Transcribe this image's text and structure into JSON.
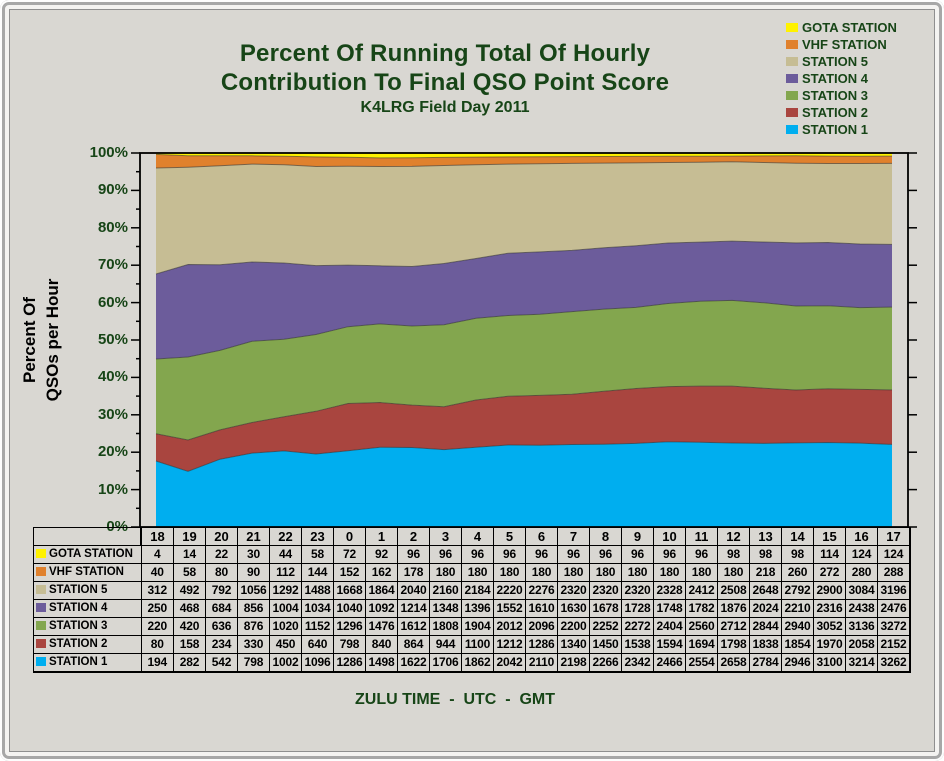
{
  "header": {
    "title_line1": "Percent Of Running Total Of Hourly",
    "title_line2": "Contribution To Final QSO Point Score",
    "subtitle": "K4LRG Field Day 2011"
  },
  "y_axis": {
    "title_line1": "Percent Of",
    "title_line2": "QSOs per Hour",
    "tick_labels": [
      "100%",
      "90%",
      "80%",
      "70%",
      "60%",
      "50%",
      "40%",
      "30%",
      "20%",
      "10%",
      "0%"
    ]
  },
  "x_axis": {
    "title": "ZULU TIME  -  UTC  -  GMT"
  },
  "colors": {
    "background": "#D9D7D2",
    "heading_text": "#174517",
    "table_text": "#000000",
    "plot_border": "#000000",
    "band_edge": "rgba(45,45,45,0.55)"
  },
  "chart_data": {
    "type": "area",
    "stacked": true,
    "normalized_to_percent": true,
    "title": "Percent Of Running Total Of Hourly Contribution To Final QSO Point Score",
    "subtitle": "K4LRG Field Day 2011",
    "xlabel": "ZULU TIME  -  UTC  -  GMT",
    "ylabel": "Percent Of QSOs per Hour",
    "ylim": [
      0,
      100
    ],
    "grid": false,
    "legend_position": "top-right",
    "x": [
      18,
      19,
      20,
      21,
      22,
      23,
      0,
      1,
      2,
      3,
      4,
      5,
      6,
      7,
      8,
      9,
      10,
      11,
      12,
      13,
      14,
      15,
      16,
      17
    ],
    "stack_order_bottom_to_top": [
      "STATION 1",
      "STATION 2",
      "STATION 3",
      "STATION 4",
      "STATION 5",
      "VHF STATION",
      "GOTA STATION"
    ],
    "series": [
      {
        "name": "GOTA STATION",
        "color": "#FFF200",
        "values": [
          4,
          14,
          22,
          30,
          44,
          58,
          72,
          92,
          96,
          96,
          96,
          96,
          96,
          96,
          96,
          96,
          96,
          96,
          98,
          98,
          98,
          114,
          124,
          124
        ]
      },
      {
        "name": "VHF STATION",
        "color": "#E0812D",
        "values": [
          40,
          58,
          80,
          90,
          112,
          144,
          152,
          162,
          178,
          180,
          180,
          180,
          180,
          180,
          180,
          180,
          180,
          180,
          180,
          218,
          260,
          272,
          280,
          288
        ]
      },
      {
        "name": "STATION 5",
        "color": "#C6BD94",
        "values": [
          312,
          492,
          792,
          1056,
          1292,
          1488,
          1668,
          1864,
          2040,
          2160,
          2184,
          2220,
          2276,
          2320,
          2320,
          2320,
          2328,
          2412,
          2508,
          2648,
          2792,
          2900,
          3084,
          3196
        ]
      },
      {
        "name": "STATION 4",
        "color": "#6C5C9B",
        "values": [
          250,
          468,
          684,
          856,
          1004,
          1034,
          1040,
          1092,
          1214,
          1348,
          1396,
          1552,
          1610,
          1630,
          1678,
          1728,
          1748,
          1782,
          1876,
          2024,
          2210,
          2316,
          2438,
          2476
        ]
      },
      {
        "name": "STATION 3",
        "color": "#83A64E",
        "values": [
          220,
          420,
          636,
          876,
          1020,
          1152,
          1296,
          1476,
          1612,
          1808,
          1904,
          2012,
          2096,
          2200,
          2252,
          2272,
          2404,
          2560,
          2712,
          2844,
          2940,
          3052,
          3136,
          3272
        ]
      },
      {
        "name": "STATION 2",
        "color": "#A9453F",
        "values": [
          80,
          158,
          234,
          330,
          450,
          640,
          798,
          840,
          864,
          944,
          1100,
          1212,
          1286,
          1340,
          1450,
          1538,
          1594,
          1694,
          1798,
          1838,
          1854,
          1970,
          2058,
          2152
        ]
      },
      {
        "name": "STATION 1",
        "color": "#00AEEF",
        "values": [
          194,
          282,
          542,
          798,
          1002,
          1096,
          1286,
          1498,
          1622,
          1706,
          1862,
          2042,
          2110,
          2198,
          2266,
          2342,
          2466,
          2554,
          2658,
          2784,
          2946,
          3100,
          3214,
          3262
        ]
      }
    ]
  }
}
